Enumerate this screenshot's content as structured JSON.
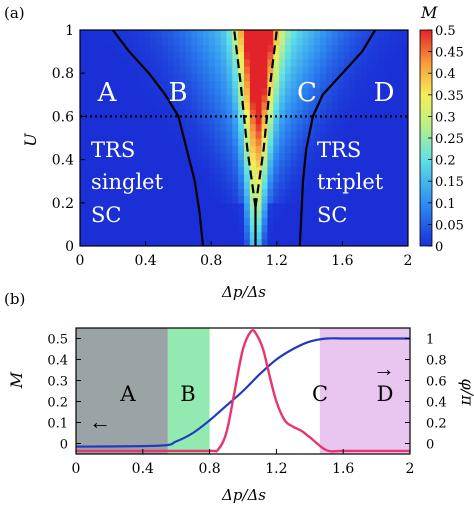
{
  "colors": {
    "frame": "#000000",
    "curve_M": "#e8356f",
    "curve_phi": "#1f3cc0",
    "region_A": "#9aa3a6",
    "region_B": "#92eab0",
    "region_D": "#e8c6f0"
  },
  "chart_data": [
    {
      "type": "heatmap",
      "panel_label": "(a)",
      "title": "",
      "xlabel": "Δp/Δs",
      "ylabel": "U",
      "xlim": [
        0,
        2
      ],
      "ylim": [
        0,
        1
      ],
      "x_ticks": [
        "0",
        "0.4",
        "0.8",
        "1.2",
        "1.6",
        "2"
      ],
      "y_ticks": [
        "0",
        "0.2",
        "0.4",
        "0.6",
        "0.8",
        "1"
      ],
      "colorbar": {
        "label": "M",
        "range": [
          0,
          0.5
        ],
        "ticks": [
          "0",
          "0.05",
          "0.1",
          "0.15",
          "0.2",
          "0.25",
          "0.3",
          "0.35",
          "0.4",
          "0.45",
          "0.5"
        ]
      },
      "region_labels": [
        "A",
        "B",
        "C",
        "D"
      ],
      "annotations": [
        {
          "lines": [
            "TRS",
            "singlet",
            "SC"
          ]
        },
        {
          "lines": [
            "TRS",
            "triplet",
            "SC"
          ]
        }
      ],
      "dotted_line_U": 0.6,
      "boundaries_solid": [
        {
          "x": [
            0.2,
            0.3,
            0.42,
            0.52,
            0.6,
            0.65,
            0.7,
            0.73,
            0.75
          ],
          "y": [
            1.0,
            0.9,
            0.8,
            0.7,
            0.6,
            0.45,
            0.3,
            0.15,
            0.0
          ]
        },
        {
          "x": [
            1.07,
            1.07
          ],
          "y": [
            0.0,
            0.22
          ]
        },
        {
          "x": [
            1.8,
            1.72,
            1.6,
            1.48,
            1.42,
            1.38,
            1.36,
            1.34
          ],
          "y": [
            1.0,
            0.9,
            0.8,
            0.7,
            0.6,
            0.45,
            0.3,
            0.0
          ]
        }
      ],
      "boundaries_dashed": [
        {
          "x": [
            1.07,
            1.02,
            0.98,
            0.94
          ],
          "y": [
            0.18,
            0.45,
            0.75,
            1.0
          ]
        },
        {
          "x": [
            1.07,
            1.12,
            1.16,
            1.2
          ],
          "y": [
            0.18,
            0.45,
            0.75,
            1.0
          ]
        }
      ]
    },
    {
      "type": "line",
      "panel_label": "(b)",
      "title": "",
      "xlabel": "Δp/Δs",
      "ylabel_left": "M",
      "ylabel_right": "φ/π",
      "xlim": [
        0,
        2
      ],
      "ylim_left": [
        -0.05,
        0.55
      ],
      "ylim_right": [
        -0.1,
        1.1
      ],
      "x_ticks": [
        "0",
        "0.4",
        "0.8",
        "1.2",
        "1.6",
        "2"
      ],
      "y_ticks_left": [
        "0",
        "0.1",
        "0.2",
        "0.3",
        "0.4",
        "0.5"
      ],
      "y_ticks_right": [
        "0",
        "0.2",
        "0.4",
        "0.6",
        "0.8",
        "1"
      ],
      "regions": [
        {
          "label": "A",
          "x_range": [
            0,
            0.55
          ]
        },
        {
          "label": "B",
          "x_range": [
            0.55,
            0.8
          ]
        },
        {
          "label": "C",
          "x_range": [
            0.8,
            1.46
          ]
        },
        {
          "label": "D",
          "x_range": [
            1.46,
            2.0
          ]
        }
      ],
      "arrows": [
        {
          "direction": "left",
          "glyph": "←"
        },
        {
          "direction": "right",
          "glyph": "→"
        }
      ],
      "series": [
        {
          "x": [
            0,
            0.5,
            0.8,
            0.85,
            0.9,
            0.95,
            1.0,
            1.05,
            1.08,
            1.12,
            1.16,
            1.2,
            1.25,
            1.3,
            1.35,
            1.4,
            1.5,
            1.6,
            1.8,
            2.0
          ],
          "y": [
            -0.035,
            -0.035,
            -0.035,
            -0.03,
            0.05,
            0.25,
            0.45,
            0.535,
            0.52,
            0.45,
            0.32,
            0.2,
            0.11,
            0.08,
            0.06,
            0.03,
            -0.032,
            -0.035,
            -0.035,
            -0.035
          ]
        },
        {
          "x": [
            0,
            0.5,
            0.6,
            0.7,
            0.8,
            0.9,
            1.0,
            1.1,
            1.2,
            1.3,
            1.4,
            1.5,
            1.6,
            1.7,
            1.8,
            2.0
          ],
          "y_right": [
            -0.03,
            -0.02,
            0.02,
            0.1,
            0.22,
            0.36,
            0.5,
            0.66,
            0.8,
            0.9,
            0.97,
            1.0,
            1.0,
            1.0,
            1.0,
            1.0
          ]
        }
      ]
    }
  ]
}
